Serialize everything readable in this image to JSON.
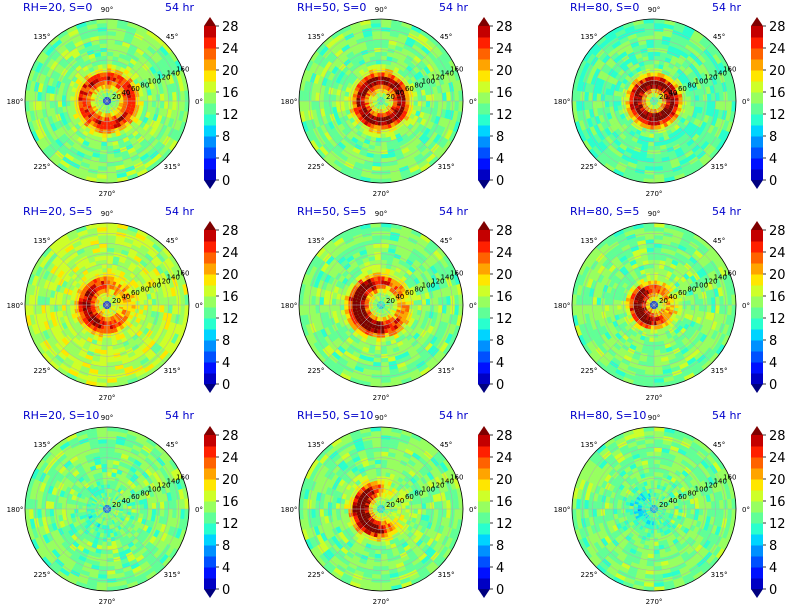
{
  "figure": {
    "time_label": "54 hr",
    "angle_labels": [
      "90°",
      "45°",
      "0°",
      "315°",
      "270°",
      "225°",
      "180°",
      "135°"
    ],
    "radius_labels": [
      "20",
      "40",
      "60",
      "80",
      "100",
      "120",
      "140",
      "160"
    ]
  },
  "colorbar": {
    "ticks": [
      "0",
      "4",
      "8",
      "12",
      "16",
      "20",
      "24",
      "28"
    ],
    "levels": [
      0,
      2,
      4,
      6,
      8,
      10,
      12,
      14,
      16,
      18,
      20,
      22,
      24,
      26,
      28
    ],
    "colors": [
      "#00007f",
      "#0000c4",
      "#0010ff",
      "#0050ff",
      "#0090ff",
      "#00d4ff",
      "#29ffce",
      "#60ff97",
      "#97ff60",
      "#ceff29",
      "#ffe600",
      "#ffa400",
      "#ff6200",
      "#ff2000",
      "#c40000",
      "#7f0000"
    ],
    "extend": "both"
  },
  "chart_data": [
    {
      "type": "heatmap",
      "title": "RH=20, S=0",
      "rh": 20,
      "s": 0,
      "time": "54 hr",
      "projection": "polar",
      "r_max": 160,
      "approx_field": {
        "core_value": 3,
        "ring_value": 26,
        "ring_radius": 45,
        "background": 14
      }
    },
    {
      "type": "heatmap",
      "title": "RH=50, S=0",
      "rh": 50,
      "s": 0,
      "time": "54 hr",
      "projection": "polar",
      "r_max": 160,
      "approx_field": {
        "core_value": 12,
        "ring_value": 29,
        "ring_radius": 40,
        "background": 14
      }
    },
    {
      "type": "heatmap",
      "title": "RH=80, S=0",
      "rh": 80,
      "s": 0,
      "time": "54 hr",
      "projection": "polar",
      "r_max": 160,
      "approx_field": {
        "core_value": 12,
        "ring_value": 30,
        "ring_radius": 35,
        "background": 13
      }
    },
    {
      "type": "heatmap",
      "title": "RH=20, S=5",
      "rh": 20,
      "s": 5,
      "time": "54 hr",
      "projection": "polar",
      "r_max": 160,
      "approx_field": {
        "core_value": 3,
        "ring_value": 25,
        "ring_radius": 40,
        "background": 16
      }
    },
    {
      "type": "heatmap",
      "title": "RH=50, S=5",
      "rh": 50,
      "s": 5,
      "time": "54 hr",
      "projection": "polar",
      "r_max": 160,
      "approx_field": {
        "core_value": 10,
        "ring_value": 28,
        "ring_radius": 45,
        "background": 14
      }
    },
    {
      "type": "heatmap",
      "title": "RH=80, S=5",
      "rh": 80,
      "s": 5,
      "time": "54 hr",
      "projection": "polar",
      "r_max": 160,
      "approx_field": {
        "core_value": 3,
        "ring_value": 26,
        "ring_radius": 30,
        "background": 14
      }
    },
    {
      "type": "heatmap",
      "title": "RH=20, S=10",
      "rh": 20,
      "s": 10,
      "time": "54 hr",
      "projection": "polar",
      "r_max": 160,
      "approx_field": {
        "core_value": 5,
        "ring_value": 13,
        "ring_radius": 40,
        "background": 14
      }
    },
    {
      "type": "heatmap",
      "title": "RH=50, S=10",
      "rh": 50,
      "s": 10,
      "time": "54 hr",
      "projection": "polar",
      "r_max": 160,
      "approx_field": {
        "core_value": 10,
        "ring_value": 25,
        "ring_radius": 40,
        "background": 14
      }
    },
    {
      "type": "heatmap",
      "title": "RH=80, S=10",
      "rh": 80,
      "s": 10,
      "time": "54 hr",
      "projection": "polar",
      "r_max": 160,
      "approx_field": {
        "core_value": 8,
        "ring_value": 12,
        "ring_radius": 30,
        "background": 14
      }
    }
  ]
}
